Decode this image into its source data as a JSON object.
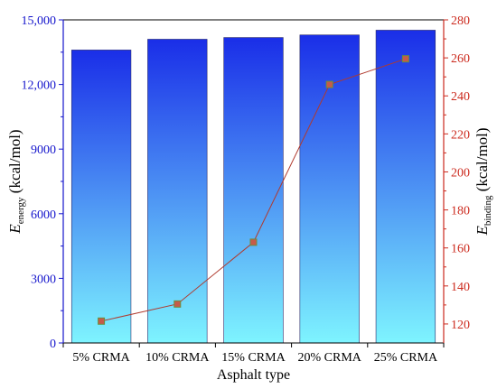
{
  "chart_data": {
    "type": "bar",
    "categories": [
      "5% CRMA",
      "10% CRMA",
      "15% CRMA",
      "20% CRMA",
      "25% CRMA"
    ],
    "series": [
      {
        "name": "E_energy",
        "type": "bar",
        "axis": "left",
        "values": [
          13600,
          14100,
          14180,
          14300,
          14520
        ]
      },
      {
        "name": "E_binding",
        "type": "line",
        "axis": "right",
        "values": [
          121.5,
          130.5,
          163,
          246,
          259.5
        ]
      }
    ],
    "xlabel": "Asphalt type",
    "ylabel_left": {
      "symbol": "E",
      "subscript": "energy",
      "unit": " (kcal/mol)"
    },
    "ylabel_right": {
      "symbol": "E",
      "subscript": "binding",
      "unit": " (kcal/mol)"
    },
    "ylim_left": [
      0,
      15000
    ],
    "ylim_right": [
      110,
      280
    ],
    "yticks_left": [
      0,
      3000,
      6000,
      9000,
      12000,
      15000
    ],
    "yticks_left_labels": [
      "0",
      "3000",
      "6000",
      "9000",
      "12,000",
      "15,000"
    ],
    "yticks_right": [
      120,
      140,
      160,
      180,
      200,
      220,
      240,
      260,
      280
    ],
    "colors": {
      "left_axis": "#1414cc",
      "right_axis": "#cc2a1e",
      "bar_top": "#1a2ee8",
      "bar_bottom": "#7ef4ff",
      "line": "#b03a2e",
      "marker": "#c65a4a",
      "marker_edge": "#6b8f3e"
    },
    "grid": false,
    "legend": "none"
  }
}
